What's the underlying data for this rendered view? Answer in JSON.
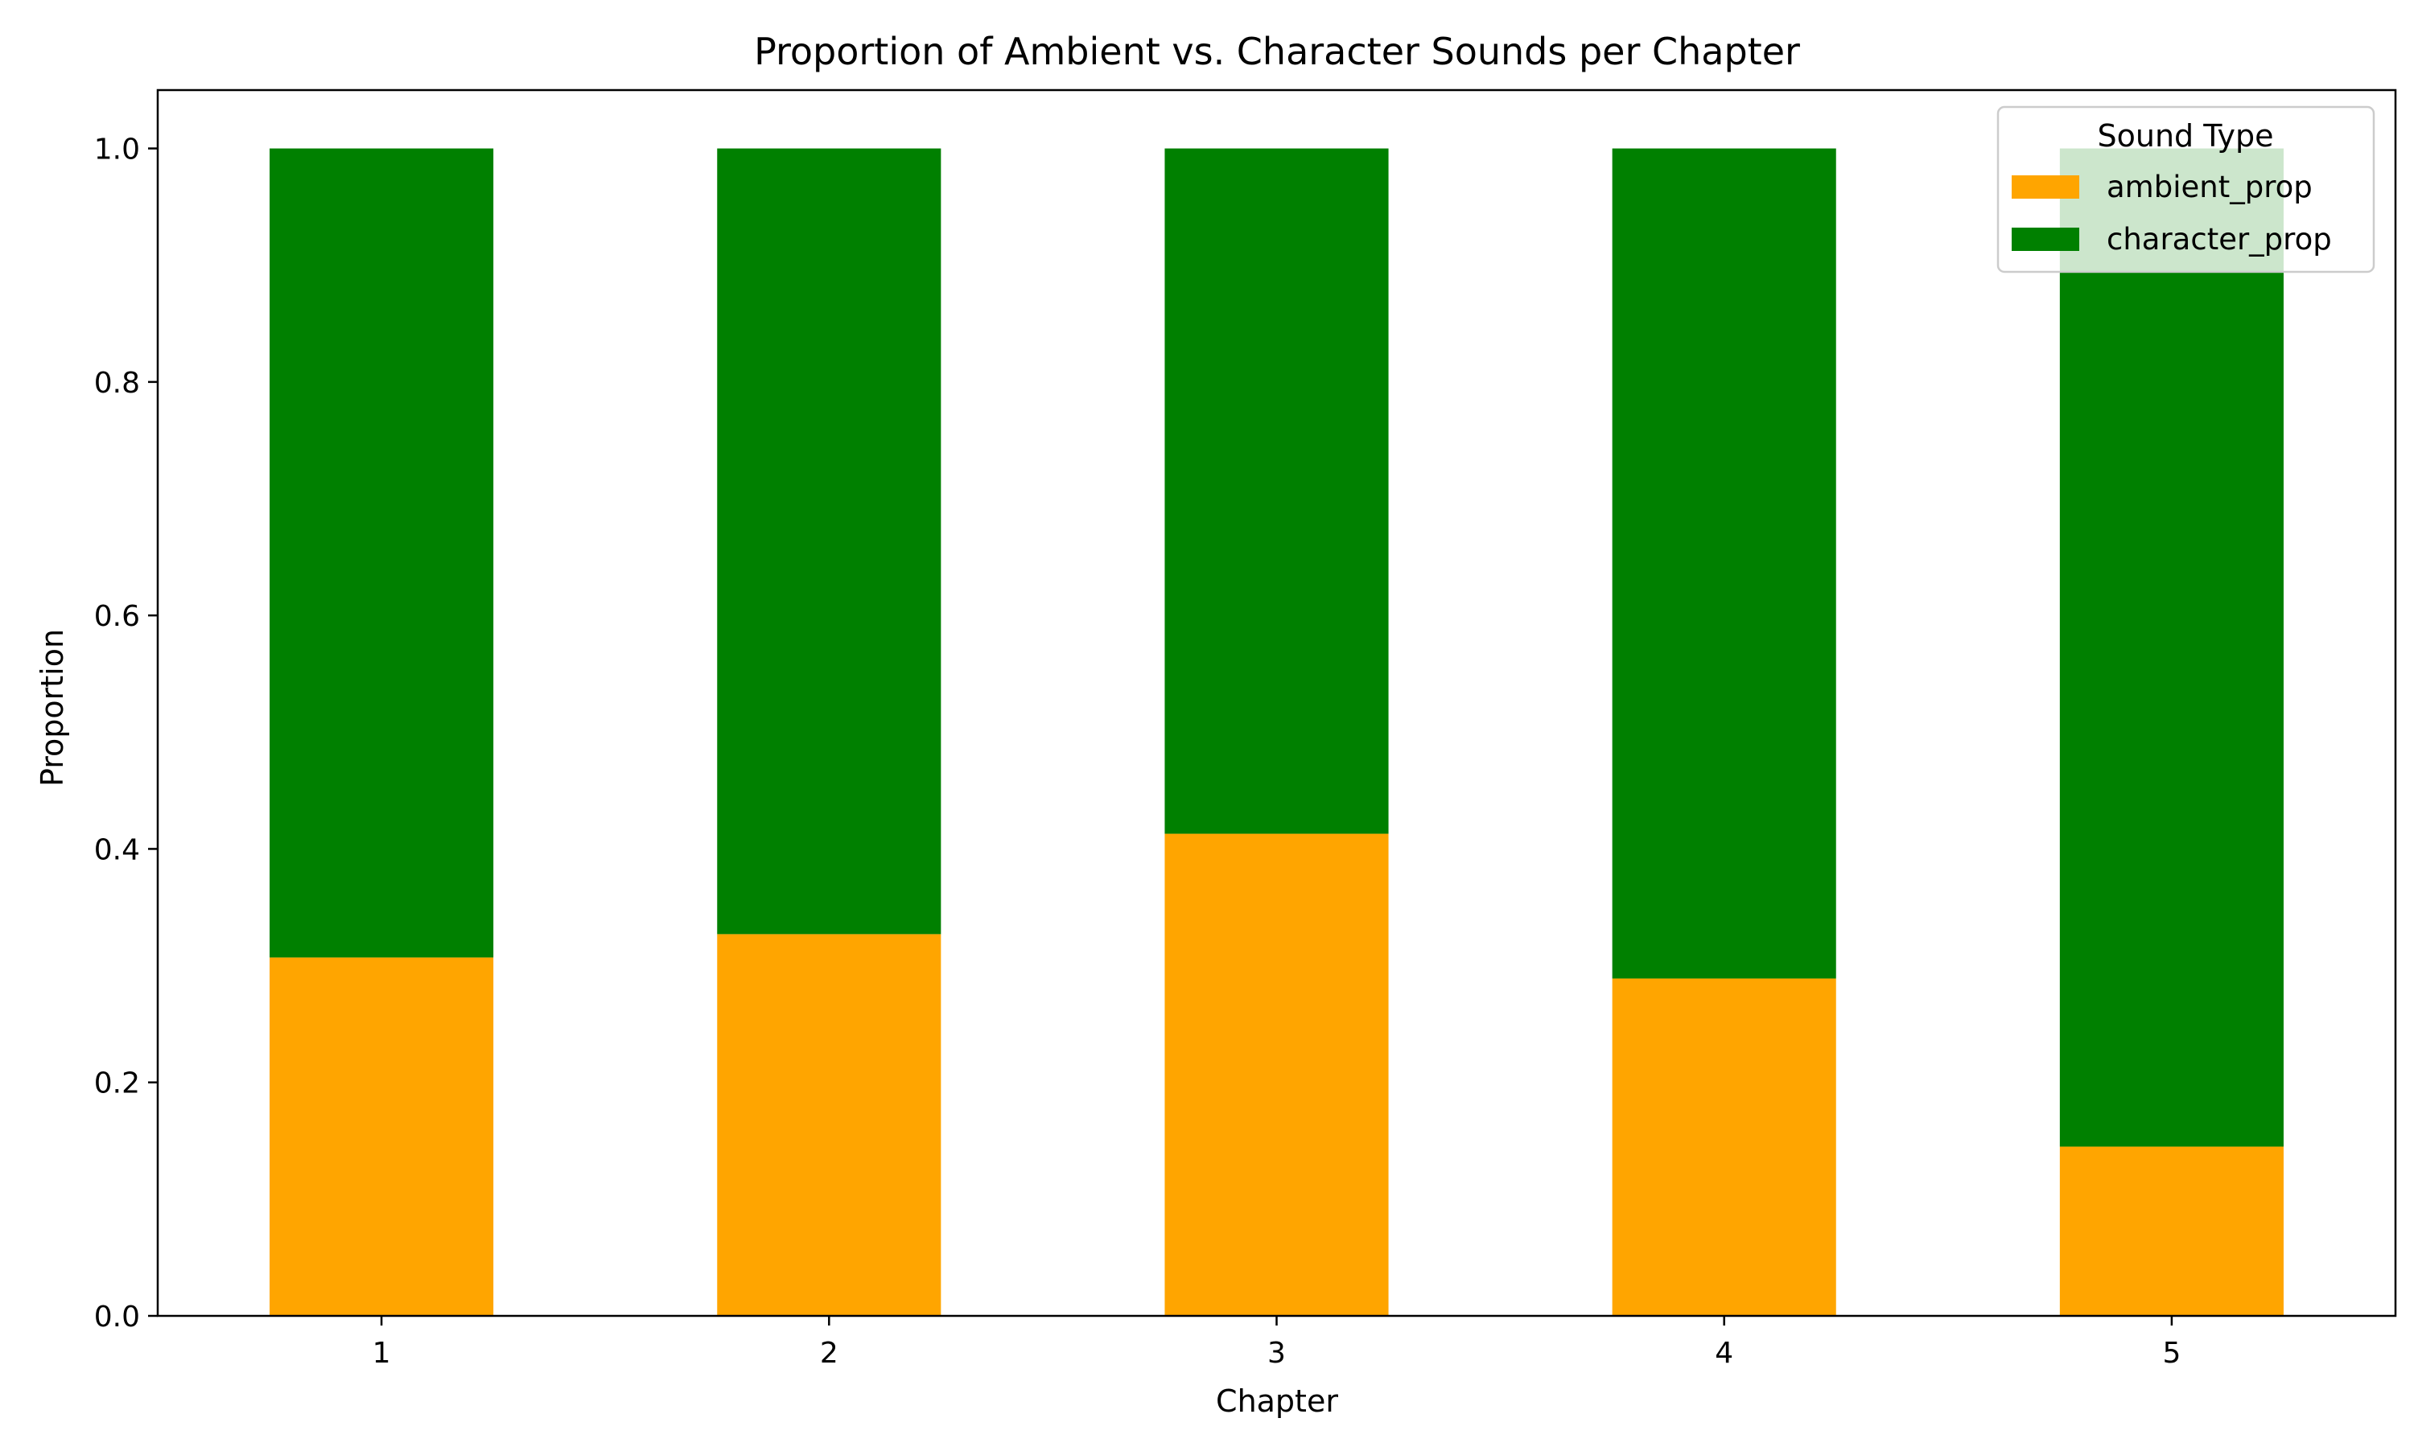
{
  "chart_data": {
    "type": "bar",
    "stacked": true,
    "title": "Proportion of Ambient vs. Character Sounds per Chapter",
    "xlabel": "Chapter",
    "ylabel": "Proportion",
    "categories": [
      "1",
      "2",
      "3",
      "4",
      "5"
    ],
    "series": [
      {
        "name": "ambient_prop",
        "color": "#ffa500",
        "values": [
          0.307,
          0.327,
          0.413,
          0.289,
          0.145
        ]
      },
      {
        "name": "character_prop",
        "color": "#008000",
        "values": [
          0.693,
          0.673,
          0.587,
          0.711,
          0.855
        ]
      }
    ],
    "ylim": [
      0,
      1.05
    ],
    "yticks": [
      "0.0",
      "0.2",
      "0.4",
      "0.6",
      "0.8",
      "1.0"
    ],
    "grid": false,
    "legend": {
      "title": "Sound Type",
      "placement": "top-right"
    }
  }
}
